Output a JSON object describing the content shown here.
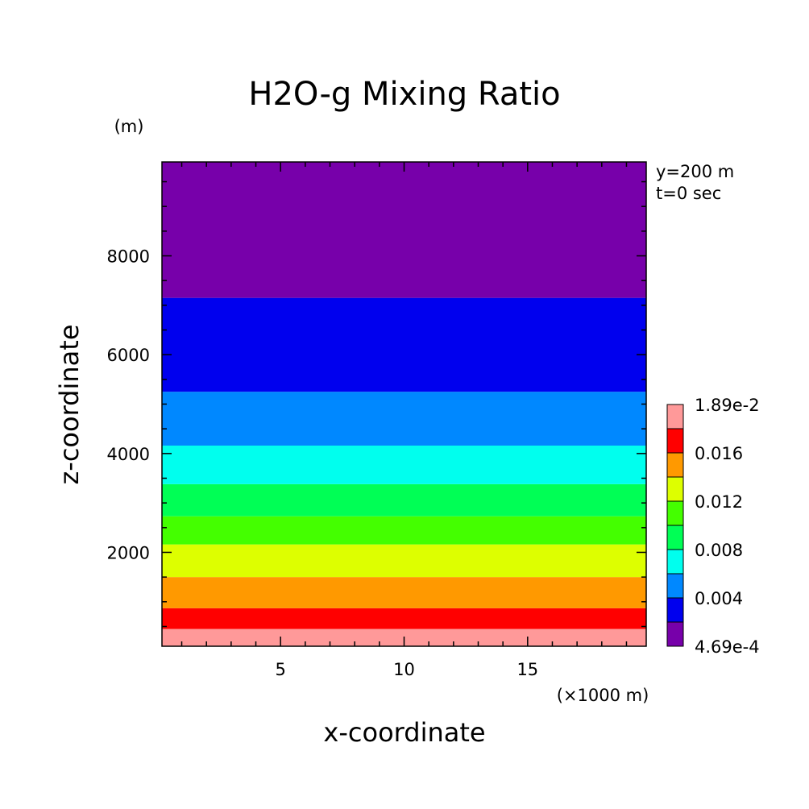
{
  "chart_data": {
    "type": "heatmap",
    "title": "H2O-g Mixing Ratio",
    "xlabel": "x-coordinate",
    "ylabel": "z-coordinate",
    "x_unit": "(×1000 m)",
    "y_unit": "(m)",
    "annotations": [
      "y=200 m",
      "t=0 sec"
    ],
    "xlim": [
      0.2,
      19.8
    ],
    "ylim": [
      100,
      9900
    ],
    "x_ticks": [
      5,
      10,
      15
    ],
    "y_ticks": [
      2000,
      4000,
      6000,
      8000
    ],
    "grid": false,
    "legend_placement": "right",
    "bands": [
      {
        "z_min": 100,
        "z_max": 450,
        "color": "#ff9999"
      },
      {
        "z_min": 450,
        "z_max": 870,
        "color": "#ff0000"
      },
      {
        "z_min": 870,
        "z_max": 1500,
        "color": "#ff9900"
      },
      {
        "z_min": 1500,
        "z_max": 2160,
        "color": "#ddff00"
      },
      {
        "z_min": 2160,
        "z_max": 2730,
        "color": "#44ff00"
      },
      {
        "z_min": 2730,
        "z_max": 3380,
        "color": "#00ff55"
      },
      {
        "z_min": 3380,
        "z_max": 4160,
        "color": "#00ffee"
      },
      {
        "z_min": 4160,
        "z_max": 5250,
        "color": "#0088ff"
      },
      {
        "z_min": 5250,
        "z_max": 7150,
        "color": "#0000ee"
      },
      {
        "z_min": 7150,
        "z_max": 9900,
        "color": "#7700aa"
      }
    ],
    "colorbar": {
      "colors": [
        "#7700aa",
        "#0000ee",
        "#0088ff",
        "#00ffee",
        "#00ff55",
        "#44ff00",
        "#ddff00",
        "#ff9900",
        "#ff0000",
        "#ff9999"
      ],
      "labels": [
        "4.69e-4",
        "0.004",
        "0.008",
        "0.012",
        "0.016",
        "1.89e-2"
      ]
    }
  }
}
